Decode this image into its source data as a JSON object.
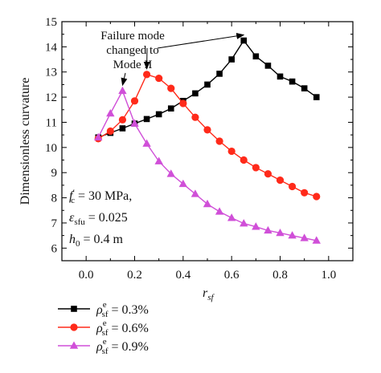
{
  "chart_data": {
    "type": "line",
    "xlabel": {
      "main": "r",
      "sub": "sf"
    },
    "ylabel": "Dimensionless curvature",
    "xlim": [
      -0.1,
      1.1
    ],
    "ylim": [
      5.5,
      15
    ],
    "x_ticks": [
      "0.0",
      "0.2",
      "0.4",
      "0.6",
      "0.8",
      "1.0"
    ],
    "y_ticks": [
      "6",
      "7",
      "8",
      "9",
      "10",
      "11",
      "12",
      "13",
      "14",
      "15"
    ],
    "x_tick_values": [
      0.0,
      0.2,
      0.4,
      0.6,
      0.8,
      1.0
    ],
    "y_tick_values": [
      6,
      7,
      8,
      9,
      10,
      11,
      12,
      13,
      14,
      15
    ],
    "series": [
      {
        "name": {
          "pre": "ρ",
          "sup": "e",
          "sub": "sf",
          "post": " = 0.3%"
        },
        "color": "#000000",
        "marker": "square",
        "x": [
          0.05,
          0.1,
          0.15,
          0.2,
          0.25,
          0.3,
          0.35,
          0.4,
          0.45,
          0.5,
          0.55,
          0.6,
          0.65,
          0.7,
          0.75,
          0.8,
          0.85,
          0.9,
          0.95
        ],
        "y": [
          10.4,
          10.58,
          10.76,
          10.95,
          11.13,
          11.32,
          11.55,
          11.85,
          12.15,
          12.5,
          12.93,
          13.5,
          14.25,
          13.62,
          13.25,
          12.82,
          12.62,
          12.35,
          12.0
        ]
      },
      {
        "name": {
          "pre": "ρ",
          "sup": "e",
          "sub": "sf",
          "post": " = 0.6%"
        },
        "color": "#ff2a1a",
        "marker": "circle",
        "x": [
          0.05,
          0.1,
          0.15,
          0.2,
          0.25,
          0.3,
          0.35,
          0.4,
          0.45,
          0.5,
          0.55,
          0.6,
          0.65,
          0.7,
          0.75,
          0.8,
          0.85,
          0.9,
          0.95
        ],
        "y": [
          10.35,
          10.65,
          11.1,
          11.85,
          12.9,
          12.75,
          12.35,
          11.75,
          11.2,
          10.7,
          10.25,
          9.85,
          9.5,
          9.2,
          8.95,
          8.7,
          8.45,
          8.2,
          8.05
        ]
      },
      {
        "name": {
          "pre": "ρ",
          "sup": "e",
          "sub": "sf",
          "post": " = 0.9%"
        },
        "color": "#d04fd8",
        "marker": "triangle",
        "x": [
          0.05,
          0.1,
          0.15,
          0.2,
          0.25,
          0.3,
          0.35,
          0.4,
          0.45,
          0.5,
          0.55,
          0.6,
          0.65,
          0.7,
          0.75,
          0.8,
          0.85,
          0.9,
          0.95
        ],
        "y": [
          10.4,
          11.35,
          12.25,
          10.95,
          10.15,
          9.45,
          8.95,
          8.55,
          8.15,
          7.75,
          7.45,
          7.2,
          6.98,
          6.85,
          6.7,
          6.6,
          6.5,
          6.4,
          6.3
        ]
      }
    ],
    "annotation": {
      "lines": [
        "Failure mode",
        "changed to",
        "Mode II"
      ],
      "arrow_targets": [
        [
          0.15,
          12.25
        ],
        [
          0.25,
          12.9
        ],
        [
          0.65,
          14.25
        ]
      ]
    },
    "parameters": [
      {
        "main": "f",
        "prime": "′",
        "sub": "c",
        "post": " = 30 MPa,"
      },
      {
        "main": "ε",
        "prime": "",
        "sub": "sfu",
        "post": " = 0.025"
      },
      {
        "main": "h",
        "prime": "",
        "sub": "0",
        "post": " = 0.4 m"
      }
    ],
    "grid": false,
    "legend_position": "below-left"
  }
}
